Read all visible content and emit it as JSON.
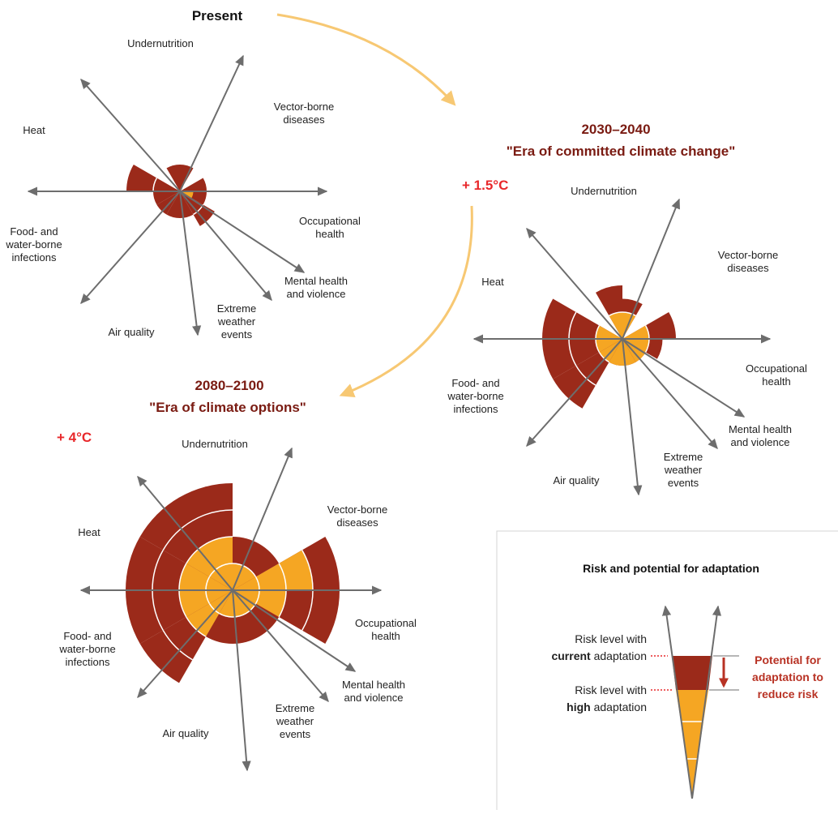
{
  "colors": {
    "risk_current": "#9b2a1a",
    "risk_high": "#f5a623",
    "flow_arrow": "#f7c873",
    "axis": "#6d6d6d",
    "title_dark_red": "#7a1b12",
    "temp_red": "#e8282b",
    "potential_red": "#b83224"
  },
  "panels": [
    {
      "title": "Present",
      "subtitle": "",
      "temperature": "",
      "ring_spacing": 33,
      "wedges": [
        {
          "name": "Undernutrition",
          "from": 0.5,
          "to": 1.0,
          "high_rings": 0,
          "current_rings": 1
        },
        {
          "name": "Vector-borne diseases",
          "from": 1.0,
          "to": 1.5,
          "high_rings": 0,
          "current_rings": 1
        },
        {
          "name": "Occupational health",
          "from": 2.0,
          "to": 2.5,
          "high_rings": 0,
          "current_rings": 1
        },
        {
          "name": "Mental health and violence",
          "from": 2.5,
          "to": 3.0,
          "high_rings": 0.5,
          "current_rings": 1
        },
        {
          "name": "Extreme weather events",
          "from": 3.0,
          "to": 3.5,
          "high_rings": 0,
          "current_rings": 1.5
        },
        {
          "name": "Air quality",
          "from": 3.5,
          "to": 4.5,
          "high_rings": 0,
          "current_rings": 1
        },
        {
          "name": "Food- and water-borne infections",
          "from": 4.5,
          "to": 5.0,
          "high_rings": 0,
          "current_rings": 1
        },
        {
          "name": "Heat",
          "from": 5.0,
          "to": 5.5,
          "high_rings": 0,
          "current_rings": 1
        },
        {
          "name": "Heat-2",
          "from": 5.5,
          "to": 6.0,
          "high_rings": 0,
          "current_rings": 2
        }
      ],
      "labels": [
        {
          "text": "Undernutrition",
          "lines": [
            "Undernutrition"
          ]
        },
        {
          "text": "Vector-borne diseases",
          "lines": [
            "Vector-borne",
            "diseases"
          ]
        },
        {
          "text": "Heat",
          "lines": [
            "Heat"
          ]
        },
        {
          "text": "Occupational health",
          "lines": [
            "Occupational",
            "health"
          ]
        },
        {
          "text": "Food- and water-borne infections",
          "lines": [
            "Food- and",
            "water-borne",
            "infections"
          ]
        },
        {
          "text": "Mental health and violence",
          "lines": [
            "Mental health",
            "and violence"
          ]
        },
        {
          "text": "Extreme weather events",
          "lines": [
            "Extreme",
            "weather",
            "events"
          ]
        },
        {
          "text": "Air quality",
          "lines": [
            "Air quality"
          ]
        }
      ]
    },
    {
      "title": "2030–2040",
      "subtitle": "\"Era of committed climate change\"",
      "temperature": "+ 1.5°C",
      "ring_spacing": 33,
      "wedges": [
        {
          "name": "Undernutrition",
          "from": 0.5,
          "to": 1.0,
          "high_rings": 1,
          "current_rings": 2
        },
        {
          "name": "Vector-borne diseases",
          "from": 1.0,
          "to": 1.5,
          "high_rings": 1,
          "current_rings": 1.5
        },
        {
          "name": "Occupational health",
          "from": 2.0,
          "to": 2.5,
          "high_rings": 1,
          "current_rings": 2
        },
        {
          "name": "Mental health and violence",
          "from": 2.5,
          "to": 3.0,
          "high_rings": 1,
          "current_rings": 1.5
        },
        {
          "name": "Extreme weather events",
          "from": 3.0,
          "to": 3.5,
          "high_rings": 1,
          "current_rings": 1
        },
        {
          "name": "Air quality",
          "from": 3.5,
          "to": 4.5,
          "high_rings": 1,
          "current_rings": 1
        },
        {
          "name": "Food- and water-borne infections",
          "from": 4.5,
          "to": 5.0,
          "high_rings": 1,
          "current_rings": 3
        },
        {
          "name": "Heat",
          "from": 5.0,
          "to": 6.0,
          "high_rings": 1,
          "current_rings": 3
        }
      ],
      "labels": [
        {
          "text": "Undernutrition",
          "lines": [
            "Undernutrition"
          ]
        },
        {
          "text": "Vector-borne diseases",
          "lines": [
            "Vector-borne",
            "diseases"
          ]
        },
        {
          "text": "Heat",
          "lines": [
            "Heat"
          ]
        },
        {
          "text": "Occupational health",
          "lines": [
            "Occupational",
            "health"
          ]
        },
        {
          "text": "Food- and water-borne infections",
          "lines": [
            "Food- and",
            "water-borne",
            "infections"
          ]
        },
        {
          "text": "Mental health and violence",
          "lines": [
            "Mental health",
            "and violence"
          ]
        },
        {
          "text": "Extreme weather events",
          "lines": [
            "Extreme",
            "weather",
            "events"
          ]
        },
        {
          "text": "Air quality",
          "lines": [
            "Air quality"
          ]
        }
      ]
    },
    {
      "title": "2080–2100",
      "subtitle": "\"Era of climate options\"",
      "temperature": "+ 4°C",
      "ring_spacing": 33,
      "wedges": [
        {
          "name": "Undernutrition",
          "from": 0.0,
          "to": 1.0,
          "high_rings": 2,
          "current_rings": 4
        },
        {
          "name": "Vector-borne diseases",
          "from": 1.0,
          "to": 2.0,
          "high_rings": 1,
          "current_rings": 2
        },
        {
          "name": "Occupational health",
          "from": 2.0,
          "to": 2.5,
          "high_rings": 3,
          "current_rings": 4
        },
        {
          "name": "Mental health and violence",
          "from": 2.5,
          "to": 3.0,
          "high_rings": 2,
          "current_rings": 4
        },
        {
          "name": "Extreme weather events",
          "from": 3.0,
          "to": 4.0,
          "high_rings": 1,
          "current_rings": 2
        },
        {
          "name": "Air quality",
          "from": 4.0,
          "to": 4.5,
          "high_rings": 1,
          "current_rings": 2
        },
        {
          "name": "Food- and water-borne infections",
          "from": 4.5,
          "to": 5.0,
          "high_rings": 2,
          "current_rings": 4
        },
        {
          "name": "Heat",
          "from": 5.0,
          "to": 6.0,
          "high_rings": 2,
          "current_rings": 4
        }
      ],
      "labels": [
        {
          "text": "Undernutrition",
          "lines": [
            "Undernutrition"
          ]
        },
        {
          "text": "Vector-borne diseases",
          "lines": [
            "Vector-borne",
            "diseases"
          ]
        },
        {
          "text": "Heat",
          "lines": [
            "Heat"
          ]
        },
        {
          "text": "Occupational health",
          "lines": [
            "Occupational",
            "health"
          ]
        },
        {
          "text": "Food- and water-borne infections",
          "lines": [
            "Food- and",
            "water-borne",
            "infections"
          ]
        },
        {
          "text": "Mental health and violence",
          "lines": [
            "Mental health",
            "and violence"
          ]
        },
        {
          "text": "Extreme weather events",
          "lines": [
            "Extreme",
            "weather",
            "events"
          ]
        },
        {
          "text": "Air quality",
          "lines": [
            "Air quality"
          ]
        }
      ]
    }
  ],
  "legend": {
    "title": "Risk and potential for adaptation",
    "current_prefix": "Risk level with",
    "current_bold": "current",
    "current_suffix": " adaptation",
    "high_prefix": "Risk level with",
    "high_bold": "high",
    "high_suffix": " adaptation",
    "potential_lines": [
      "Potential for",
      "adaptation to",
      "reduce risk"
    ]
  }
}
